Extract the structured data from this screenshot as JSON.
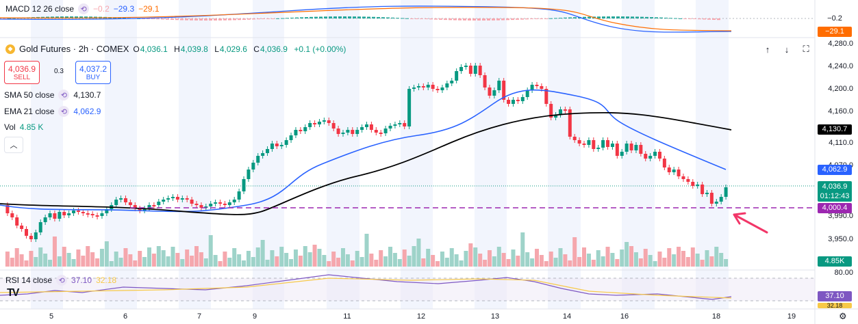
{
  "macd": {
    "label": "MACD 12 26 close",
    "histogram": "−0.2",
    "macd_line": "−29.3",
    "signal": "−29.1",
    "axis_tag_hist": "−0.2",
    "axis_tag_signal": "−29.1"
  },
  "header": {
    "symbol": "Gold Futures · 2h · COMEX",
    "ohlc": [
      {
        "k": "O",
        "v": "4,036.1"
      },
      {
        "k": "H",
        "v": "4,039.8"
      },
      {
        "k": "L",
        "v": "4,029.6"
      },
      {
        "k": "C",
        "v": "4,036.9"
      }
    ],
    "change": "+0.1 (+0.00%)"
  },
  "trade": {
    "sell_price": "4,036.9",
    "sell_label": "SELL",
    "spread": "0.3",
    "buy_price": "4,037.2",
    "buy_label": "BUY"
  },
  "indicators": {
    "sma": {
      "label": "SMA 50 close",
      "value": "4,130.7"
    },
    "ema": {
      "label": "EMA 21 close",
      "value": "4,062.9"
    },
    "vol": {
      "label": "Vol",
      "value": "4.85 K"
    }
  },
  "toolbar": {
    "up_icon": "arrow-up-icon",
    "down_icon": "arrow-down-icon",
    "fullscreen_icon": "fullscreen-icon"
  },
  "price_axis": {
    "ticks": [
      "4,280.0",
      "4,240.0",
      "4,200.0",
      "4,160.0",
      "4,110.0",
      "4,070.0",
      "3,990.0",
      "3,950.0"
    ],
    "tags": {
      "sma": "4,130.7",
      "ema": "4,062.9",
      "last": "4,036.9",
      "countdown": "01:12:43",
      "level": "4,000.4",
      "volume": "4.85K"
    }
  },
  "rsi": {
    "label": "RSI 14 close",
    "rsi_value": "37.10",
    "ma_value": "32.18",
    "axis_top": "80.00",
    "axis_tag": "37.10",
    "axis_partial": "32.18"
  },
  "x_axis": {
    "labels": [
      "5",
      "6",
      "7",
      "9",
      "11",
      "12",
      "13",
      "14",
      "16",
      "18",
      "19"
    ]
  },
  "colors": {
    "up": "#089981",
    "down": "#f23645",
    "ema": "#2962ff",
    "sma": "#000000",
    "rsi": "#7e57c2",
    "level": "#9c27b0",
    "macd": "#2962ff",
    "signal": "#ff6d00"
  }
}
